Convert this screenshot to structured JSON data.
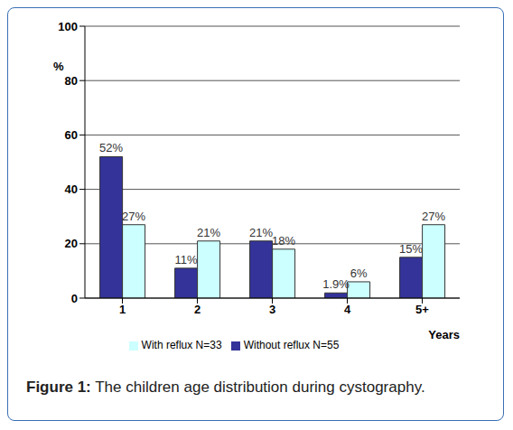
{
  "chart_data": {
    "type": "bar",
    "caption": "Figure 1: The children age distribution during cystography.",
    "x_label": "Years",
    "y_label": "%",
    "categories": [
      "1",
      "2",
      "3",
      "4",
      "5+"
    ],
    "series": [
      {
        "name": "Without reflux N=55",
        "color": "#333399",
        "values": [
          52,
          11,
          21,
          1.9,
          15
        ],
        "value_labels": [
          "52%",
          "11%",
          "21%",
          "1.9%",
          "15%"
        ]
      },
      {
        "name": "With reflux N=33",
        "color": "#ccffff",
        "values": [
          27,
          21,
          18,
          6,
          27
        ],
        "value_labels": [
          "27%",
          "21%",
          "18%",
          "6%",
          "27%"
        ]
      }
    ],
    "ylim": [
      0,
      100
    ],
    "yticks": [
      0,
      20,
      40,
      60,
      80,
      100
    ],
    "grid": true,
    "legend": "bottom",
    "data_labels": true
  }
}
